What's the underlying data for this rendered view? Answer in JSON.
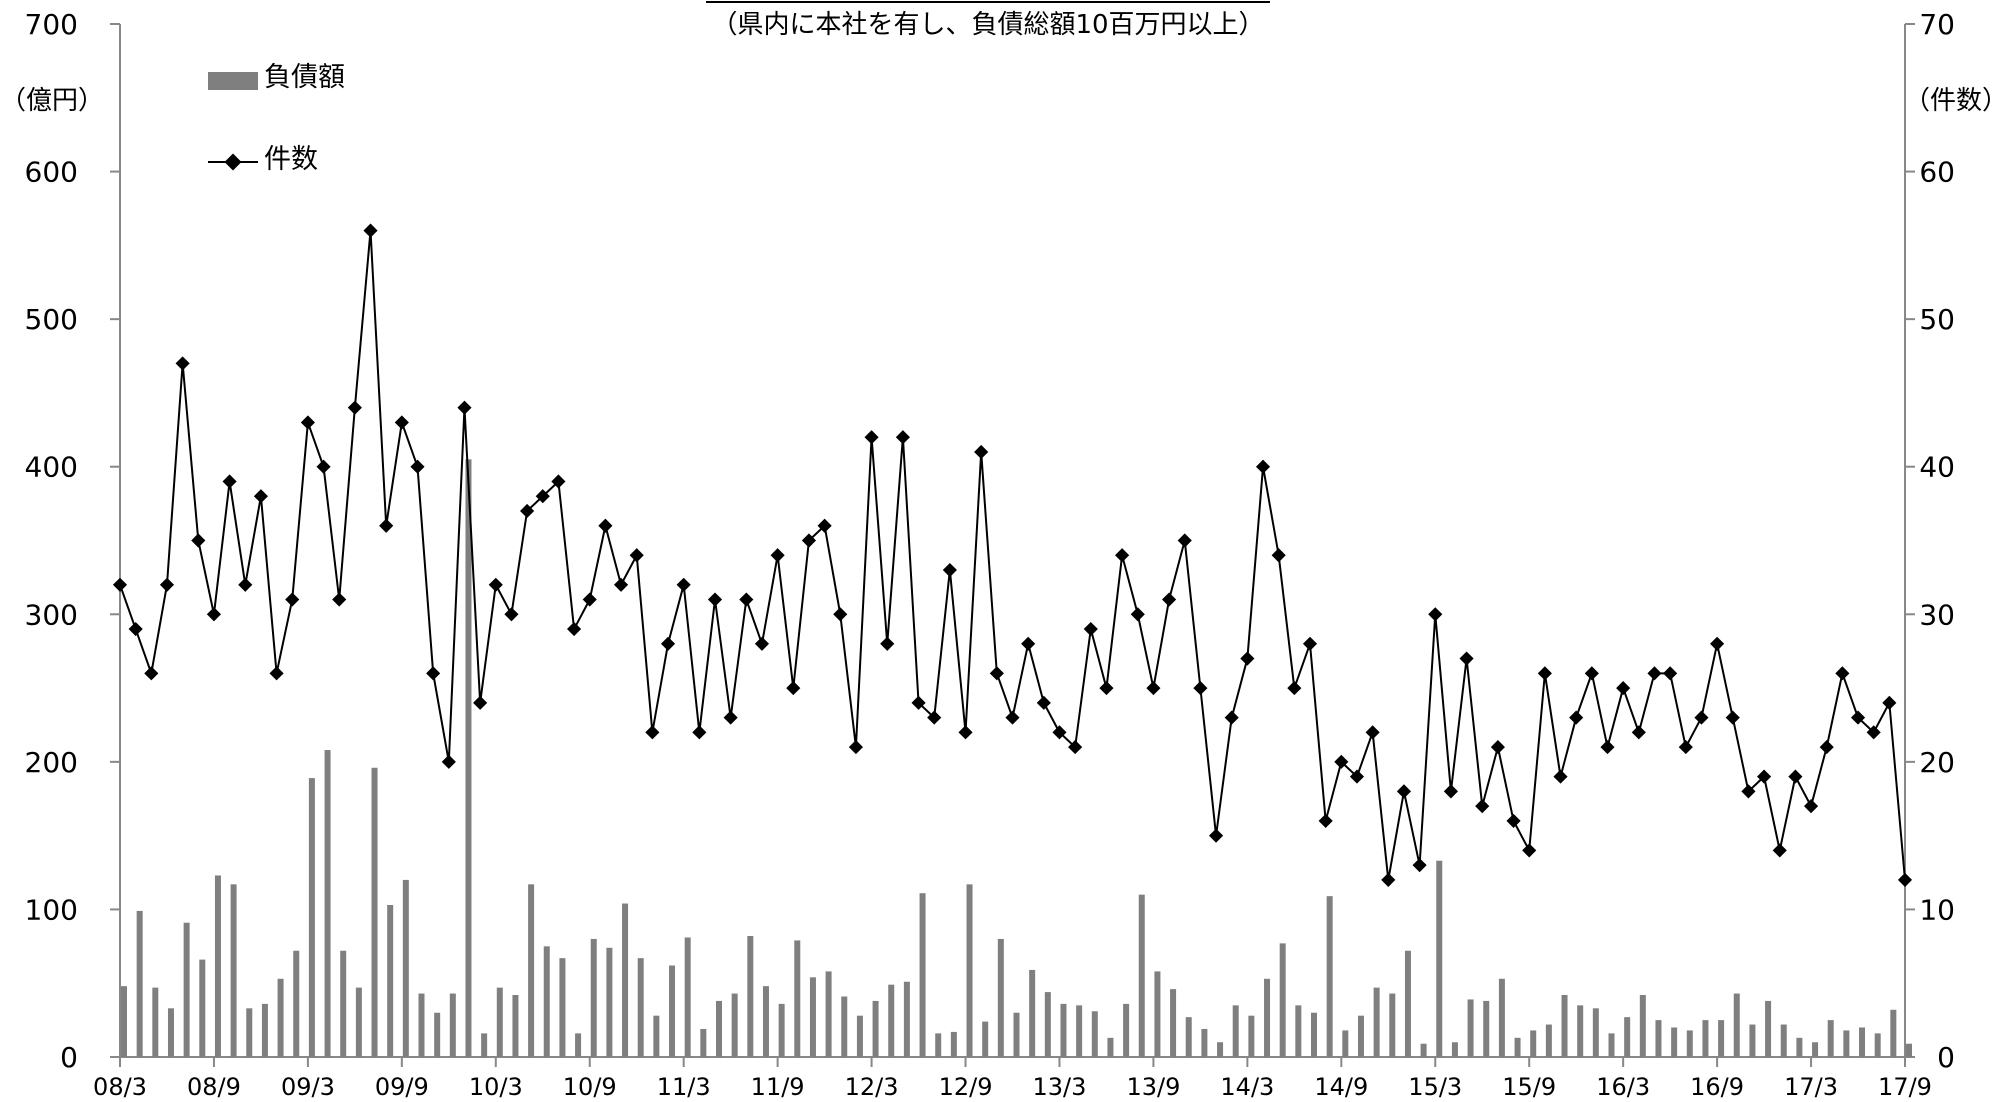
{
  "chart_data": {
    "type": "bar+line",
    "subtitle": "（県内に本社を有し、負債総額10百万円以上）",
    "y_left": {
      "unit_label": "（億円）",
      "ylim": [
        0,
        700
      ],
      "ticks": [
        0,
        100,
        200,
        300,
        400,
        500,
        600,
        700
      ]
    },
    "y_right": {
      "unit_label": "（件数）",
      "ylim": [
        0,
        70
      ],
      "ticks": [
        0,
        10,
        20,
        30,
        40,
        50,
        60,
        70
      ]
    },
    "x_tick_labels": [
      "08/3",
      "08/9",
      "09/3",
      "09/9",
      "10/3",
      "10/9",
      "11/3",
      "11/9",
      "12/3",
      "12/9",
      "13/3",
      "13/9",
      "14/3",
      "14/9",
      "15/3",
      "15/9",
      "16/3",
      "16/9",
      "17/3",
      "17/9"
    ],
    "legend": {
      "placement": "top-left",
      "bar_label": "負債額",
      "line_label": "件数"
    },
    "colors": {
      "bar": "#7f7f7f",
      "line": "#000000"
    },
    "series": [
      {
        "name": "負債額",
        "kind": "bar",
        "axis": "left",
        "values": [
          48,
          99,
          47,
          33,
          91,
          66,
          123,
          117,
          33,
          36,
          53,
          72,
          189,
          208,
          72,
          47,
          196,
          103,
          120,
          43,
          30,
          43,
          405,
          16,
          47,
          42,
          117,
          75,
          67,
          16,
          80,
          74,
          104,
          67,
          28,
          62,
          81,
          19,
          38,
          43,
          82,
          48,
          36,
          79,
          54,
          58,
          41,
          28,
          38,
          49,
          51,
          111,
          16,
          17,
          117,
          24,
          80,
          30,
          59,
          44,
          36,
          35,
          31,
          13,
          36,
          110,
          58,
          46,
          27,
          19,
          10,
          35,
          28,
          53,
          77,
          35,
          30,
          109,
          18,
          28,
          47,
          43,
          72,
          9,
          133,
          10,
          39,
          38,
          53,
          13,
          18,
          22,
          42,
          35,
          33,
          16,
          27,
          42,
          25,
          20,
          18,
          25,
          25,
          43,
          22,
          38,
          22,
          13,
          10,
          25,
          18,
          20,
          16,
          32,
          9
        ]
      },
      {
        "name": "件数",
        "kind": "line",
        "axis": "right",
        "values": [
          32,
          29,
          26,
          32,
          47,
          35,
          30,
          39,
          32,
          38,
          26,
          31,
          43,
          40,
          31,
          44,
          56,
          36,
          43,
          40,
          26,
          20,
          44,
          24,
          32,
          30,
          37,
          38,
          39,
          29,
          31,
          36,
          32,
          34,
          22,
          28,
          32,
          22,
          31,
          23,
          31,
          28,
          34,
          25,
          35,
          36,
          30,
          21,
          42,
          28,
          42,
          24,
          23,
          33,
          22,
          41,
          26,
          23,
          28,
          24,
          22,
          21,
          29,
          25,
          34,
          30,
          25,
          31,
          35,
          25,
          15,
          23,
          27,
          40,
          34,
          25,
          28,
          16,
          20,
          19,
          22,
          12,
          18,
          13,
          30,
          18,
          27,
          17,
          21,
          16,
          14,
          26,
          19,
          23,
          26,
          21,
          25,
          22,
          26,
          26,
          21,
          23,
          28,
          23,
          18,
          19,
          14,
          19,
          17,
          21,
          26,
          23,
          22,
          24,
          12
        ]
      }
    ]
  }
}
